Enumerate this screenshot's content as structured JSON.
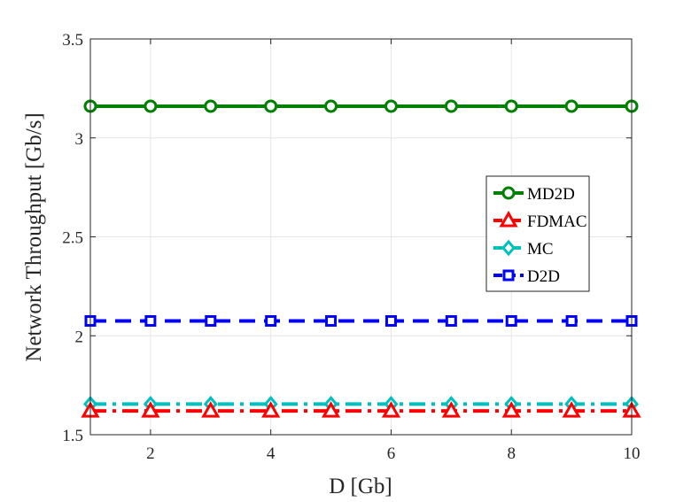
{
  "chart_data": {
    "type": "line",
    "title": "",
    "xlabel": "D [Gb]",
    "ylabel": "Network Throughput [Gb/s]",
    "xlim": [
      1,
      10
    ],
    "ylim": [
      1.5,
      3.5
    ],
    "xticks": [
      2,
      4,
      6,
      8,
      10
    ],
    "yticks": [
      1.5,
      2,
      2.5,
      3,
      3.5
    ],
    "x": [
      1,
      2,
      3,
      4,
      5,
      6,
      7,
      8,
      9,
      10
    ],
    "grid": true,
    "legend_position": "right",
    "series": [
      {
        "name": "MD2D",
        "color": "#008000",
        "marker": "circle",
        "dash": "solid",
        "values": [
          3.16,
          3.16,
          3.16,
          3.16,
          3.16,
          3.16,
          3.16,
          3.16,
          3.16,
          3.16
        ]
      },
      {
        "name": "FDMAC",
        "color": "#ff0000",
        "marker": "triangle",
        "dash": "dashdot",
        "values": [
          1.62,
          1.62,
          1.62,
          1.62,
          1.62,
          1.62,
          1.62,
          1.62,
          1.62,
          1.62
        ]
      },
      {
        "name": "MC",
        "color": "#00bfbf",
        "marker": "diamond",
        "dash": "dashdot",
        "values": [
          1.655,
          1.655,
          1.655,
          1.655,
          1.655,
          1.655,
          1.655,
          1.655,
          1.655,
          1.655
        ]
      },
      {
        "name": "D2D",
        "color": "#0000ff",
        "marker": "square",
        "dash": "dashed",
        "values": [
          2.075,
          2.075,
          2.075,
          2.075,
          2.075,
          2.075,
          2.075,
          2.075,
          2.075,
          2.075
        ]
      }
    ]
  }
}
